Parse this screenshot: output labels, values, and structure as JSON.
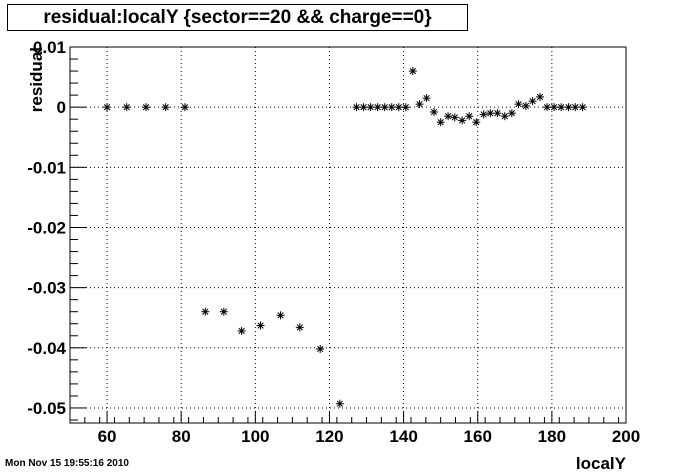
{
  "chart_data": {
    "type": "scatter",
    "title": "residual:localY {sector==20 && charge==0}",
    "xlabel": "localY",
    "ylabel": "residual",
    "xlim": [
      50,
      200
    ],
    "ylim": [
      -0.0525,
      0.01
    ],
    "x_ticks": [
      60,
      80,
      100,
      120,
      140,
      160,
      180,
      200
    ],
    "y_ticks": [
      0.01,
      0,
      -0.01,
      -0.02,
      -0.03,
      -0.04,
      -0.05
    ],
    "x_tick_labels": [
      "60",
      "80",
      "100",
      "120",
      "140",
      "160",
      "180",
      "200"
    ],
    "y_tick_labels": [
      "0.01",
      "0",
      "-0.01",
      "-0.02",
      "-0.03",
      "-0.04",
      "-0.05"
    ],
    "grid": true,
    "marker": "*",
    "x": [
      60,
      65.3,
      70.5,
      75.8,
      81,
      86.5,
      91.5,
      96.3,
      101.4,
      106.8,
      112,
      117.5,
      122.8,
      127.3,
      129.2,
      131.1,
      133,
      134.9,
      136.8,
      138.7,
      140.6,
      142.5,
      144.3,
      146.2,
      148.2,
      150,
      152,
      153.8,
      155.8,
      157.7,
      159.6,
      161.6,
      163.4,
      165.3,
      167.3,
      169.2,
      171,
      173,
      174.8,
      176.8,
      178.7,
      180.6,
      182.5,
      184.5,
      186.3,
      188.3
    ],
    "y": [
      0,
      0,
      0,
      0,
      0,
      -0.034,
      -0.034,
      -0.0372,
      -0.0363,
      -0.0346,
      -0.0366,
      -0.0402,
      -0.0493,
      0,
      0,
      0,
      0,
      0,
      0,
      0,
      0,
      0.006,
      0.0005,
      0.0015,
      -0.0008,
      -0.0025,
      -0.0015,
      -0.0017,
      -0.0022,
      -0.0015,
      -0.0025,
      -0.0012,
      -0.001,
      -0.001,
      -0.0015,
      -0.001,
      0.0005,
      0.0002,
      0.001,
      0.0017,
      0,
      0,
      0,
      0,
      0,
      0
    ]
  },
  "footer": {
    "timestamp": "Mon Nov 15 19:55:16 2010"
  }
}
